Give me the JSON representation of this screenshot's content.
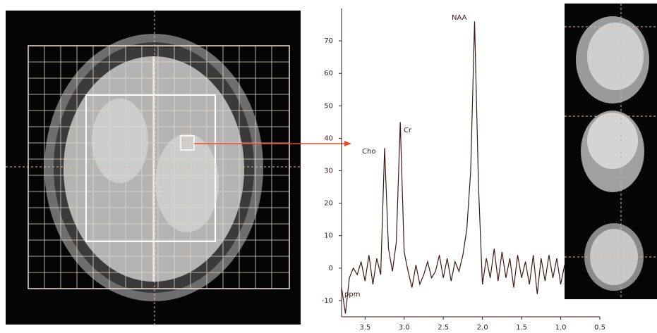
{
  "chart_data": {
    "type": "line",
    "x_unit_label": "ppm",
    "annotations": [
      "Cho",
      "Cr",
      "NAA"
    ],
    "x": [
      3.8,
      3.75,
      3.7,
      3.65,
      3.6,
      3.55,
      3.5,
      3.45,
      3.4,
      3.35,
      3.3,
      3.25,
      3.2,
      3.15,
      3.1,
      3.05,
      3.0,
      2.95,
      2.9,
      2.85,
      2.8,
      2.75,
      2.7,
      2.65,
      2.6,
      2.55,
      2.5,
      2.45,
      2.4,
      2.35,
      2.3,
      2.25,
      2.2,
      2.15,
      2.1,
      2.05,
      2.0,
      1.95,
      1.9,
      1.85,
      1.8,
      1.75,
      1.7,
      1.65,
      1.6,
      1.55,
      1.5,
      1.45,
      1.4,
      1.35,
      1.3,
      1.25,
      1.2,
      1.15,
      1.1,
      1.05,
      1.0,
      0.95
    ],
    "series": [
      {
        "color": "#3a1a10",
        "values": [
          -6,
          -14,
          -3,
          0,
          -2,
          2,
          -4,
          4,
          -5,
          3,
          -2,
          37,
          6,
          -1,
          8,
          45,
          5,
          -1,
          -6,
          1,
          -5,
          -2,
          2,
          -3,
          -1,
          4,
          -3,
          3,
          -4,
          2,
          -1,
          4,
          12,
          30,
          76,
          25,
          -5,
          3,
          -3,
          6,
          -4,
          5,
          -3,
          3,
          -6,
          4,
          -3,
          2,
          -5,
          4,
          -8,
          3,
          -4,
          4,
          -3,
          3,
          -5,
          1
        ]
      }
    ],
    "xlim": [
      3.8,
      0.5
    ],
    "xticks": [
      3.5,
      {
        "value": 3.0,
        "label": "3.0"
      },
      2.5,
      {
        "value": 2.0,
        "label": "2.0"
      },
      1.5,
      {
        "value": 1.0,
        "label": "1.0"
      },
      0.5
    ],
    "ylim": [
      -15,
      80
    ],
    "yticks": [
      -10,
      0,
      10,
      20,
      30,
      40,
      50,
      60,
      70
    ]
  }
}
